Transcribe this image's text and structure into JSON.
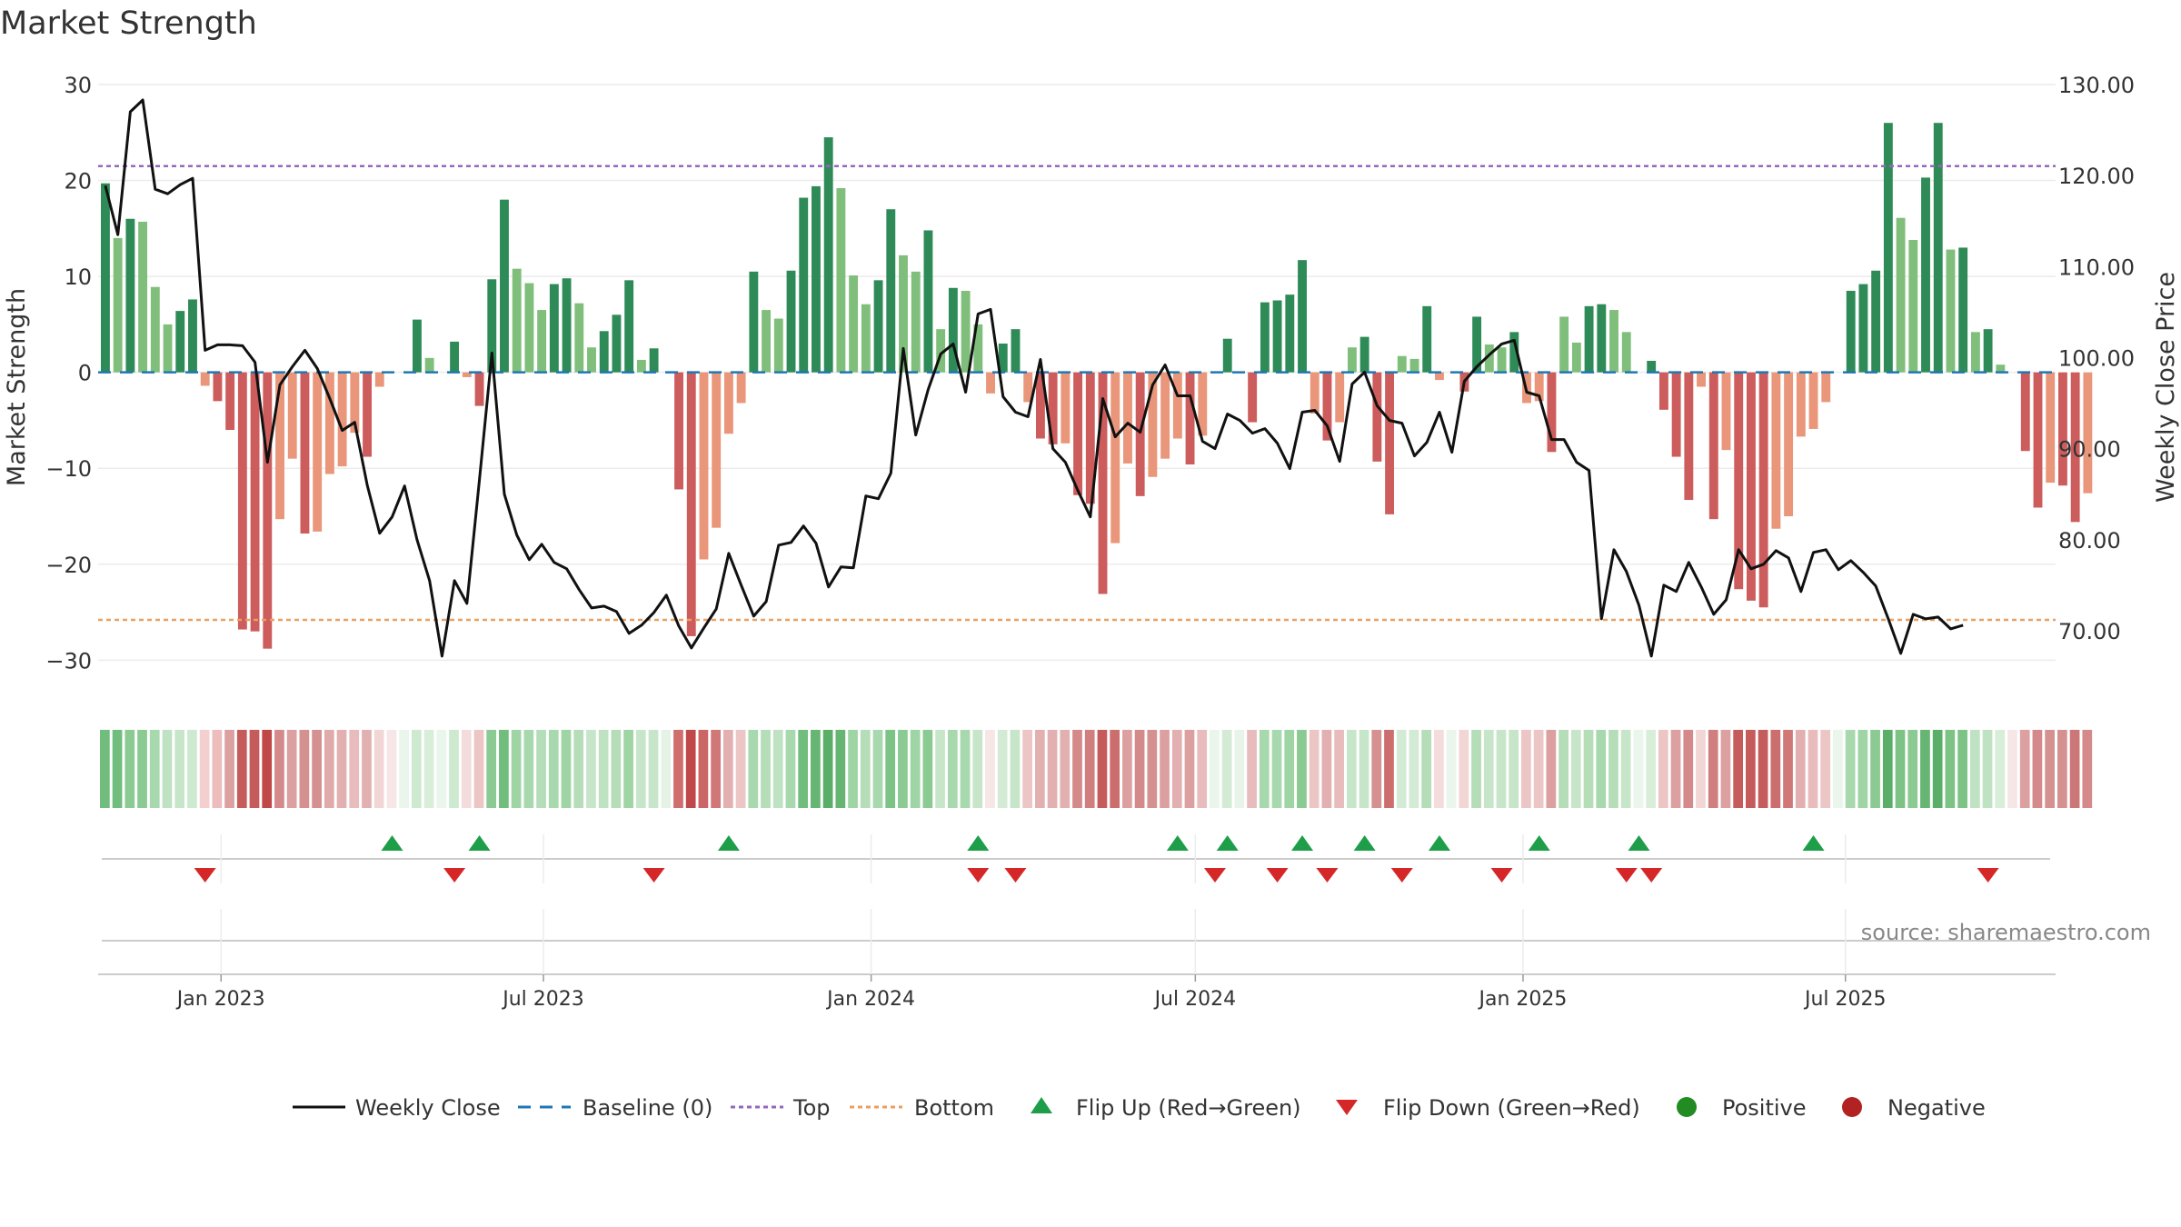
{
  "title": "Market Strength",
  "source": "source: sharemaestro.com",
  "colors": {
    "green_strong": "#2e8b57",
    "green_light": "#7fbf7b",
    "red_strong": "#cd5c5c",
    "red_light": "#e9967a",
    "close_line": "#111111",
    "baseline": "#1f77b4",
    "top_line": "#9467bd",
    "bottom_line": "#e8a060",
    "flip_up": "#1f9e4a",
    "flip_down": "#d62728",
    "positive": "#228b22",
    "negative": "#b22222"
  },
  "chart_data": {
    "type": "bar",
    "ylabel_left": "Market Strength",
    "ylabel_right": "Weekly Close Price",
    "ylim_left": [
      -33,
      30
    ],
    "ylim_right": [
      63.6,
      130
    ],
    "yticks_left": [
      "30",
      "20",
      "10",
      "0",
      "−10",
      "−20",
      "−30"
    ],
    "yticks_left_values": [
      30,
      20,
      10,
      0,
      -10,
      -20,
      -30
    ],
    "yticks_right": [
      "130.00",
      "120.00",
      "110.00",
      "100.00",
      "90.00",
      "80.00",
      "70.00"
    ],
    "yticks_right_values": [
      130,
      120,
      110,
      100,
      90,
      80,
      70
    ],
    "x_start": "2022-10-24",
    "x_end": "2025-10-27",
    "xticks": [
      {
        "date": "2023-01-01",
        "label": "Jan 2023"
      },
      {
        "date": "2023-07-01",
        "label": "Jul 2023"
      },
      {
        "date": "2024-01-01",
        "label": "Jan 2024"
      },
      {
        "date": "2024-07-01",
        "label": "Jul 2024"
      },
      {
        "date": "2025-01-01",
        "label": "Jan 2025"
      },
      {
        "date": "2025-07-01",
        "label": "Jul 2025"
      }
    ],
    "week_start": "2022-10-24",
    "top_level": 21.5,
    "bottom_level": -25.8,
    "strength": [
      19.7,
      14,
      16,
      15.7,
      8.9,
      5,
      6.4,
      7.6,
      -1.4,
      -3,
      -6,
      -26.8,
      -27,
      -28.8,
      -15.3,
      -9,
      -16.8,
      -16.6,
      -10.6,
      -9.8,
      -6.3,
      -8.8,
      -1.5,
      0,
      0,
      5.5,
      1.5,
      0,
      3.2,
      -0.5,
      -3.5,
      9.7,
      18,
      10.8,
      9.3,
      6.5,
      9.2,
      9.8,
      7.2,
      2.6,
      4.3,
      6,
      9.6,
      1.3,
      2.5,
      0,
      -12.2,
      -27.5,
      -19.5,
      -16.2,
      -6.4,
      -3.2,
      10.5,
      6.5,
      5.6,
      10.6,
      18.2,
      19.4,
      24.5,
      19.2,
      10.1,
      7.1,
      9.6,
      17,
      12.2,
      10.5,
      14.8,
      4.5,
      8.8,
      8.5,
      5,
      -2.2,
      3,
      4.5,
      -3.1,
      -6.9,
      -7.5,
      -7.4,
      -12.8,
      -13.7,
      -23.1,
      -17.8,
      -9.5,
      -12.9,
      -10.9,
      -9,
      -6.9,
      -9.6,
      -6.6,
      0,
      3.5,
      0,
      -5.2,
      7.3,
      7.5,
      8.1,
      11.7,
      -4.3,
      -7.1,
      -5.2,
      2.6,
      3.7,
      -9.3,
      -14.8,
      1.7,
      1.4,
      6.9,
      -0.8,
      0,
      -2,
      5.8,
      2.9,
      2.6,
      4.2,
      -3.2,
      -3,
      -8.3,
      5.8,
      3.1,
      6.9,
      7.1,
      6.5,
      4.2,
      0,
      1.2,
      -3.9,
      -8.8,
      -13.3,
      -1.5,
      -15.3,
      -8.1,
      -22.6,
      -23.8,
      -24.5,
      -16.3,
      -15,
      -6.7,
      -5.9,
      -3.1,
      0,
      8.5,
      9.2,
      10.6,
      26,
      16.1,
      13.8,
      20.3,
      26,
      12.8,
      13,
      4.2,
      4.5,
      0.8,
      0,
      -8.2,
      -14.1,
      -11.5,
      -11.8,
      -15.6,
      -12.6
    ],
    "close": [
      118.9,
      113.5,
      127,
      128.3,
      118.5,
      118,
      119,
      119.7,
      100.8,
      101.4,
      101.4,
      101.3,
      99.5,
      88.5,
      97,
      99,
      100.8,
      98.8,
      95.5,
      92,
      92.9,
      86,
      80.7,
      82.5,
      85.9,
      80,
      75.5,
      67.2,
      75.5,
      73,
      86.5,
      100.5,
      85,
      80.5,
      77.8,
      79.5,
      77.5,
      76.8,
      74.5,
      72.5,
      72.7,
      72.1,
      69.7,
      70.6,
      72,
      73.9,
      70.5,
      68.1,
      70.3,
      72.4,
      78.5,
      75,
      71.6,
      73.2,
      79.4,
      79.7,
      81.5,
      79.6,
      74.8,
      77,
      76.9,
      84.8,
      84.5,
      87.3,
      101,
      91.5,
      96.5,
      100.4,
      101.5,
      96.2,
      104.8,
      105.3,
      95.7,
      94,
      93.5,
      99.8,
      90,
      88.5,
      85.4,
      82.5,
      95.5,
      91.3,
      92.8,
      91.8,
      97,
      99.2,
      95.8,
      95.8,
      90.8,
      90,
      93.8,
      93.1,
      91.7,
      92.2,
      90.6,
      87.8,
      94,
      94.2,
      92.5,
      88.6,
      97.1,
      98.4,
      94.7,
      93.1,
      92.8,
      89.2,
      90.7,
      94,
      89.6,
      97.4,
      99,
      100.3,
      101.5,
      101.9,
      96.2,
      95.8,
      91,
      91,
      88.5,
      87.6,
      71.3,
      78.9,
      76.5,
      72.8,
      67.2,
      75,
      74.3,
      77.5,
      74.8,
      71.8,
      73.4,
      78.9,
      76.8,
      77.3,
      78.8,
      78,
      74.3,
      78.6,
      78.9,
      76.7,
      77.7,
      76.4,
      74.9,
      71.3,
      67.5,
      71.8,
      71.3,
      71.5,
      70.2,
      70.6
    ],
    "state_colors": [
      "#71bd7e",
      "#71bd7e",
      "#8bca92",
      "#8bca92",
      "#a8d8ad",
      "#bfe2c2",
      "#c7e6c9",
      "#cde9cf",
      "#f3cfcf",
      "#edbcbc",
      "#dca0a0",
      "#c65b5b",
      "#c65b5b",
      "#c04848",
      "#d48a8a",
      "#dda0a0",
      "#d59090",
      "#d59090",
      "#e0aaaa",
      "#e2b0b0",
      "#e8bcbc",
      "#e2b0b0",
      "#f2d5d5",
      "#f7e6e6",
      "#eaf5eb",
      "#cde9cf",
      "#d8eed9",
      "#eaf5eb",
      "#cde9cf",
      "#f4dcdc",
      "#ecc5c5",
      "#8bca92",
      "#71bd7e",
      "#9fd4a4",
      "#a8d8ad",
      "#b5ddb8",
      "#a8d8ad",
      "#9fd4a4",
      "#b5ddb8",
      "#c7e6c9",
      "#bfe2c2",
      "#b5ddb8",
      "#9fd4a4",
      "#c7e6c9",
      "#c7e6c9",
      "#e5f3e6",
      "#d06e6e",
      "#c04848",
      "#cc6565",
      "#d07777",
      "#e2b0b0",
      "#ecc5c5",
      "#a8d8ad",
      "#b5ddb8",
      "#bfe2c2",
      "#a8d8ad",
      "#71bd7e",
      "#66b572",
      "#5aae68",
      "#66b572",
      "#9fd4a4",
      "#b5ddb8",
      "#a8d8ad",
      "#7dc386",
      "#8bca92",
      "#9fd4a4",
      "#8bca92",
      "#c7e6c9",
      "#a8d8ad",
      "#a8d8ad",
      "#c7e6c9",
      "#f7e6e6",
      "#d3ebd5",
      "#c7e6c9",
      "#ecc5c5",
      "#e2b0b0",
      "#e2b0b0",
      "#e2b0b0",
      "#d48a8a",
      "#d07e7e",
      "#c65b5b",
      "#cc6e6e",
      "#dda0a0",
      "#d48a8a",
      "#d59090",
      "#dda0a0",
      "#e2b0b0",
      "#dda0a0",
      "#e8bcbc",
      "#eaf5eb",
      "#d3ebd5",
      "#e8f4e9",
      "#e8bcbc",
      "#a8d8ad",
      "#a8d8ad",
      "#9fd4a4",
      "#8bca92",
      "#ecc5c5",
      "#e2b0b0",
      "#e8bcbc",
      "#c7e6c9",
      "#c7e6c9",
      "#d59090",
      "#cc6e6e",
      "#d3ebd5",
      "#d3ebd5",
      "#b5ddb8",
      "#f4dcdc",
      "#eaf5eb",
      "#f2d5d5",
      "#b5ddb8",
      "#c7e6c9",
      "#c7e6c9",
      "#c7e6c9",
      "#ecc5c5",
      "#ecc5c5",
      "#dca0a0",
      "#b5ddb8",
      "#c7e6c9",
      "#b5ddb8",
      "#a8d8ad",
      "#b5ddb8",
      "#c7e6c9",
      "#eaf5eb",
      "#d8eed9",
      "#ecc5c5",
      "#dca0a0",
      "#d48a8a",
      "#f2d5d5",
      "#d07e7e",
      "#dca0a0",
      "#c65b5b",
      "#c65b5b",
      "#c65b5b",
      "#cc6e6e",
      "#d07777",
      "#e2b0b0",
      "#e8bcbc",
      "#ecc5c5",
      "#eaf5eb",
      "#a8d8ad",
      "#9fd4a4",
      "#8bca92",
      "#5aae68",
      "#7dc386",
      "#8bca92",
      "#66b572",
      "#5aae68",
      "#7dc386",
      "#7dc386",
      "#bfe2c2",
      "#bfe2c2",
      "#d8eed9",
      "#f7e6e6",
      "#dca0a0",
      "#d48a8a",
      "#d59090",
      "#d59090",
      "#cc7777",
      "#d48a8a"
    ],
    "flip_up_weeks": [
      23,
      30,
      50,
      70,
      86,
      90,
      96,
      101,
      107,
      115,
      123,
      137
    ],
    "flip_down_weeks": [
      8,
      28,
      44,
      70,
      73,
      89,
      94,
      98,
      104,
      112,
      122,
      124,
      151
    ],
    "legend": [
      "Weekly Close",
      "Baseline (0)",
      "Top",
      "Bottom",
      "Flip Up (Red→Green)",
      "Flip Down (Green→Red)",
      "Positive",
      "Negative"
    ]
  }
}
